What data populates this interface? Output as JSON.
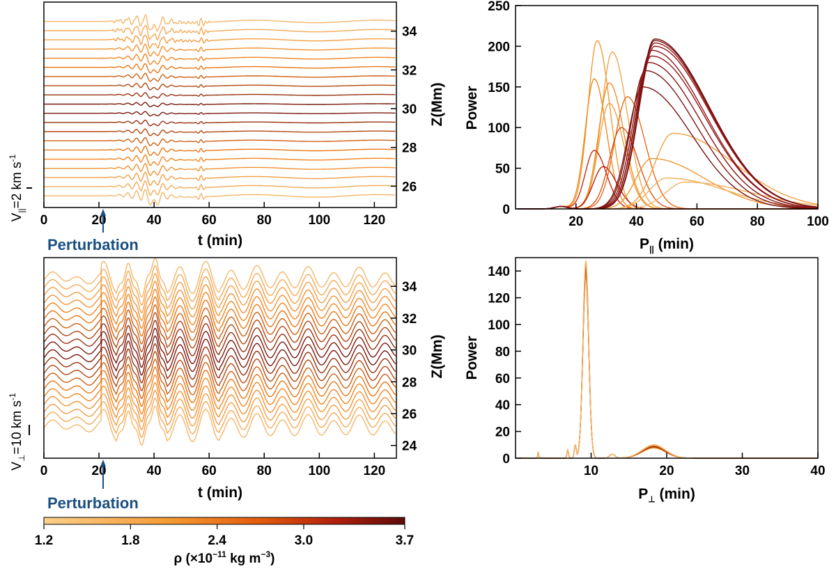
{
  "colors": {
    "light": "#f5b66a",
    "mid": "#f07c12",
    "dark": "#6e0d0d",
    "perturbation": "#1a4f80"
  },
  "chart_data": [
    {
      "id": "vpar-timeseries",
      "type": "line",
      "title": "",
      "xlabel": "t (min)",
      "ylabel_right": "Z(Mm)",
      "ylabel_left": "V||=2 km s-1",
      "left_label": {
        "main": "V",
        "sub": "||",
        "rest": "=2 km s",
        "sup": "-1"
      },
      "xlim": [
        0,
        128
      ],
      "ylim": [
        24.9,
        35.5
      ],
      "xticks": [
        "0",
        "20",
        "40",
        "60",
        "80",
        "100",
        "120"
      ],
      "yticks": [
        "26",
        "28",
        "30",
        "32",
        "34"
      ],
      "annotation": {
        "text": "Perturbation",
        "x": 21.5
      },
      "n_traces": 20,
      "z_range": [
        25.5,
        34.5
      ],
      "density_range": [
        1.2,
        3.7
      ]
    },
    {
      "id": "vpar-power",
      "type": "line",
      "title": "",
      "xlabel": "P|| (min)",
      "xlabel_parts": {
        "main": "P",
        "sub": "||",
        "rest": " (min)"
      },
      "ylabel": "Power",
      "xlim": [
        0,
        100
      ],
      "ylim": [
        0,
        250
      ],
      "xticks": [
        "20",
        "40",
        "60",
        "80",
        "100"
      ],
      "yticks": [
        "0",
        "50",
        "100",
        "150",
        "200",
        "250"
      ],
      "series": [
        {
          "name": "curve-1",
          "peak_period": 27,
          "peak_power": 207
        },
        {
          "name": "curve-2",
          "peak_period": 26,
          "peak_power": 160
        },
        {
          "name": "curve-3",
          "peak_period": 32,
          "peak_power": 193
        },
        {
          "name": "curve-4",
          "peak_period": 31,
          "peak_power": 155
        },
        {
          "name": "curve-5",
          "peak_period": 31,
          "peak_power": 130
        },
        {
          "name": "curve-6",
          "peak_period": 26,
          "peak_power": 72
        },
        {
          "name": "curve-7",
          "peak_period": 29,
          "peak_power": 52
        },
        {
          "name": "curve-8",
          "peak_period": 37,
          "peak_power": 138
        },
        {
          "name": "curve-9",
          "peak_period": 35,
          "peak_power": 100
        },
        {
          "name": "curve-10",
          "peak_period": 52,
          "peak_power": 93
        },
        {
          "name": "curve-11",
          "peak_period": 45,
          "peak_power": 62
        },
        {
          "name": "curve-12",
          "peak_period": 50,
          "peak_power": 38
        },
        {
          "name": "curve-13",
          "peak_period": 56,
          "peak_power": 33
        },
        {
          "name": "curve-14",
          "peak_period": 42,
          "peak_power": 150
        },
        {
          "name": "curve-15",
          "peak_period": 43,
          "peak_power": 170
        },
        {
          "name": "curve-16",
          "peak_period": 44,
          "peak_power": 180
        },
        {
          "name": "curve-17",
          "peak_period": 45,
          "peak_power": 188
        },
        {
          "name": "curve-18",
          "peak_period": 45,
          "peak_power": 195
        },
        {
          "name": "curve-19",
          "peak_period": 46,
          "peak_power": 200
        },
        {
          "name": "curve-20",
          "peak_period": 46,
          "peak_power": 204
        },
        {
          "name": "curve-21",
          "peak_period": 46,
          "peak_power": 207
        },
        {
          "name": "curve-22",
          "peak_period": 46,
          "peak_power": 209
        }
      ]
    },
    {
      "id": "vperp-timeseries",
      "type": "line",
      "title": "",
      "xlabel": "t (min)",
      "ylabel_right": "Z(Mm)",
      "ylabel_left": "V⊥=10 km s-1",
      "left_label": {
        "main": "V",
        "sub": "⊥",
        "rest": "=10 km s",
        "sup": "-1"
      },
      "xlim": [
        0,
        128
      ],
      "ylim": [
        23.2,
        35.8
      ],
      "xticks": [
        "0",
        "20",
        "40",
        "60",
        "80",
        "100",
        "120"
      ],
      "yticks": [
        "24",
        "26",
        "28",
        "30",
        "32",
        "34"
      ],
      "annotation": {
        "text": "Perturbation",
        "x": 21.5
      },
      "n_traces": 20,
      "z_range": [
        25.2,
        34.5
      ],
      "density_range": [
        1.2,
        3.7
      ]
    },
    {
      "id": "vperp-power",
      "type": "line",
      "title": "",
      "xlabel": "P⊥ (min)",
      "xlabel_parts": {
        "main": "P",
        "sub": "⊥",
        "rest": " (min)"
      },
      "ylabel": "Power",
      "xlim": [
        0,
        40
      ],
      "ylim": [
        0,
        150
      ],
      "xticks": [
        "10",
        "20",
        "30",
        "40"
      ],
      "yticks": [
        "0",
        "20",
        "40",
        "60",
        "80",
        "100",
        "120",
        "140"
      ],
      "peaks": [
        {
          "period": 9.3,
          "power": 148
        },
        {
          "period": 18.3,
          "power": 10
        }
      ]
    }
  ],
  "colorbar": {
    "label": "ρ (×10-11 kg m-3)",
    "label_parts": {
      "rho": "ρ",
      "pre": " (×10",
      "sup1": "−11",
      "mid": " kg m",
      "sup2": "−3",
      "post": ")"
    },
    "ticks": [
      "1.2",
      "1.8",
      "2.4",
      "3.0",
      "3.7"
    ],
    "range": [
      1.2,
      3.7
    ]
  }
}
